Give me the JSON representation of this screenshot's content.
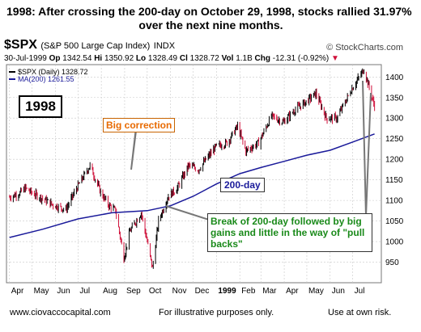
{
  "headline": {
    "line1": "1998:   After crossing the 200-day on October 29, 1998, stocks rallied 31.97%",
    "line2": "over the next nine months."
  },
  "header": {
    "symbol": "$SPX",
    "name": "(S&P 500 Large Cap Index)",
    "exchange": "INDX",
    "copyright": "© StockCharts.com",
    "stats": {
      "date": "30-Jul-1999",
      "op_label": "Op",
      "op": "1342.54",
      "hi_label": "Hi",
      "hi": "1350.92",
      "lo_label": "Lo",
      "lo": "1328.49",
      "cl_label": "Cl",
      "cl": "1328.72",
      "vol_label": "Vol",
      "vol": "1.1B",
      "chg_label": "Chg",
      "chg": "-12.31 (-0.92%)"
    }
  },
  "annotations": {
    "year": "1998",
    "big_correction": "Big correction",
    "two_hundred_day": "200-day",
    "break_text": "Break of 200-day followed by big gains and little in the way of \"pull backs\""
  },
  "footer": {
    "site": "www.ciovaccocapital.com",
    "illustrative": "For illustrative purposes only.",
    "risk": "Use at own risk."
  },
  "colors": {
    "up_bar": "#000000",
    "down_bar": "#d0103a",
    "ma_line": "#1a1a9a",
    "grid": "#c8c8c8",
    "correction_text": "#e86a00",
    "break_text": "#1a8a1a"
  },
  "chart_data": {
    "type": "line",
    "title": "$SPX (S&P 500 Large Cap Index) INDX",
    "xlabel": "",
    "ylabel": "",
    "ylim": [
      900,
      1430
    ],
    "y_ticks": [
      950,
      1000,
      1050,
      1100,
      1150,
      1200,
      1250,
      1300,
      1350,
      1400
    ],
    "x_ticks": [
      "Apr",
      "May",
      "Jun",
      "Jul",
      "Aug",
      "Sep",
      "Oct",
      "Nov",
      "Dec",
      "1999",
      "Feb",
      "Mar",
      "Apr",
      "May",
      "Jun",
      "Jul"
    ],
    "legend": [
      {
        "name": "$SPX (Daily) 1328.72"
      },
      {
        "name": "MA(200) 1261.55"
      }
    ],
    "grid": true,
    "series": [
      {
        "name": "$SPX (Daily)",
        "points": [
          [
            "1998-04-01",
            1108
          ],
          [
            "1998-04-15",
            1118
          ],
          [
            "1998-04-22",
            1130
          ],
          [
            "1998-05-01",
            1118
          ],
          [
            "1998-05-15",
            1105
          ],
          [
            "1998-05-28",
            1090
          ],
          [
            "1998-06-15",
            1078
          ],
          [
            "1998-06-30",
            1132
          ],
          [
            "1998-07-17",
            1185
          ],
          [
            "1998-07-31",
            1120
          ],
          [
            "1998-08-10",
            1090
          ],
          [
            "1998-08-20",
            1075
          ],
          [
            "1998-08-31",
            960
          ],
          [
            "1998-09-08",
            1025
          ],
          [
            "1998-09-23",
            1070
          ],
          [
            "1998-10-01",
            1000
          ],
          [
            "1998-10-08",
            935
          ],
          [
            "1998-10-16",
            1050
          ],
          [
            "1998-10-29",
            1110
          ],
          [
            "1998-11-10",
            1130
          ],
          [
            "1998-11-25",
            1185
          ],
          [
            "1998-12-08",
            1175
          ],
          [
            "1998-12-31",
            1230
          ],
          [
            "1999-01-15",
            1240
          ],
          [
            "1999-01-29",
            1280
          ],
          [
            "1999-02-09",
            1220
          ],
          [
            "1999-02-26",
            1240
          ],
          [
            "1999-03-15",
            1305
          ],
          [
            "1999-03-31",
            1290
          ],
          [
            "1999-04-15",
            1320
          ],
          [
            "1999-04-30",
            1340
          ],
          [
            "1999-05-13",
            1360
          ],
          [
            "1999-05-27",
            1300
          ],
          [
            "1999-06-10",
            1300
          ],
          [
            "1999-06-30",
            1372
          ],
          [
            "1999-07-16",
            1418
          ],
          [
            "1999-07-22",
            1380
          ],
          [
            "1999-07-30",
            1328.72
          ]
        ]
      },
      {
        "name": "MA(200)",
        "points": [
          [
            "1998-04-01",
            1010
          ],
          [
            "1998-05-15",
            1030
          ],
          [
            "1998-07-01",
            1055
          ],
          [
            "1998-08-15",
            1070
          ],
          [
            "1998-10-01",
            1075
          ],
          [
            "1998-11-01",
            1087
          ],
          [
            "1998-12-01",
            1110
          ],
          [
            "1999-01-01",
            1140
          ],
          [
            "1999-02-01",
            1165
          ],
          [
            "1999-03-01",
            1180
          ],
          [
            "1999-04-01",
            1195
          ],
          [
            "1999-05-01",
            1210
          ],
          [
            "1999-06-01",
            1222
          ],
          [
            "1999-07-01",
            1242
          ],
          [
            "1999-07-30",
            1261.55
          ]
        ]
      }
    ]
  }
}
